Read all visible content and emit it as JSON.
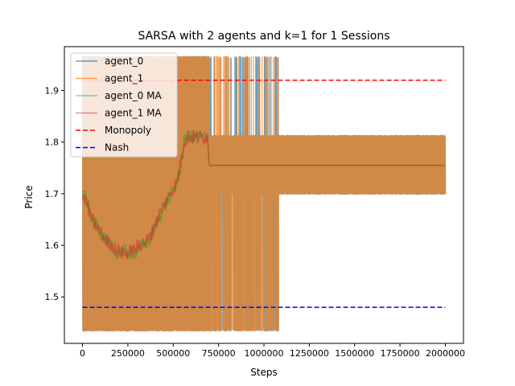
{
  "chart_data": {
    "type": "line",
    "title": "SARSA with 2 agents and k=1 for 1 Sessions",
    "xlabel": "Steps",
    "ylabel": "Price",
    "xlim": [
      -100000,
      2100000
    ],
    "ylim": [
      1.41,
      1.985
    ],
    "xticks": [
      0,
      250000,
      500000,
      750000,
      1000000,
      1250000,
      1500000,
      1750000,
      2000000
    ],
    "xtick_labels": [
      "0",
      "250000",
      "500000",
      "750000",
      "1000000",
      "1250000",
      "1500000",
      "1750000",
      "2000000"
    ],
    "yticks": [
      1.5,
      1.6,
      1.7,
      1.8,
      1.9
    ],
    "ytick_labels": [
      "1.5",
      "1.6",
      "1.7",
      "1.8",
      "1.9"
    ],
    "grid": false,
    "legend_position": "top-left",
    "price_grid_min": 1.435,
    "price_grid_max": 1.965,
    "series": [
      {
        "name": "agent_0",
        "color": "#1f77b4",
        "alpha": 0.7,
        "style": "solid",
        "kind": "raw"
      },
      {
        "name": "agent_1",
        "color": "#ff7f0e",
        "alpha": 0.7,
        "style": "solid",
        "kind": "raw"
      },
      {
        "name": "agent_0 MA",
        "color": "#2ca02c",
        "alpha": 0.5,
        "style": "solid",
        "kind": "ma",
        "x": [
          0,
          20000,
          40000,
          60000,
          80000,
          100000,
          130000,
          160000,
          190000,
          220000,
          250000,
          280000,
          310000,
          340000,
          370000,
          400000,
          430000,
          460000,
          490000,
          520000,
          540000,
          560000,
          580000,
          600000,
          640000,
          670000,
          690000,
          700000,
          750000,
          1000000,
          1500000,
          2000000
        ],
        "y": [
          1.7,
          1.69,
          1.665,
          1.645,
          1.64,
          1.625,
          1.61,
          1.595,
          1.585,
          1.59,
          1.585,
          1.585,
          1.595,
          1.6,
          1.61,
          1.635,
          1.66,
          1.68,
          1.7,
          1.72,
          1.75,
          1.8,
          1.81,
          1.81,
          1.81,
          1.81,
          1.81,
          1.755,
          1.755,
          1.755,
          1.755,
          1.755
        ]
      },
      {
        "name": "agent_1 MA",
        "color": "#d62728",
        "alpha": 0.5,
        "style": "solid",
        "kind": "ma",
        "x": [
          0,
          20000,
          40000,
          60000,
          80000,
          100000,
          130000,
          160000,
          190000,
          220000,
          250000,
          280000,
          310000,
          340000,
          370000,
          400000,
          430000,
          460000,
          490000,
          520000,
          540000,
          560000,
          580000,
          600000,
          640000,
          670000,
          690000,
          700000,
          750000,
          1000000,
          1500000,
          2000000
        ],
        "y": [
          1.695,
          1.685,
          1.66,
          1.645,
          1.635,
          1.625,
          1.61,
          1.6,
          1.59,
          1.585,
          1.585,
          1.59,
          1.6,
          1.605,
          1.615,
          1.64,
          1.665,
          1.685,
          1.705,
          1.72,
          1.76,
          1.8,
          1.81,
          1.81,
          1.81,
          1.81,
          1.81,
          1.755,
          1.755,
          1.755,
          1.755,
          1.755
        ]
      },
      {
        "name": "Monopoly",
        "color": "#ff0000",
        "style": "dashed",
        "kind": "hline",
        "y": 1.92
      },
      {
        "name": "Nash",
        "color": "#0000ff",
        "style": "dashed",
        "kind": "hline",
        "y": 1.48
      }
    ]
  }
}
